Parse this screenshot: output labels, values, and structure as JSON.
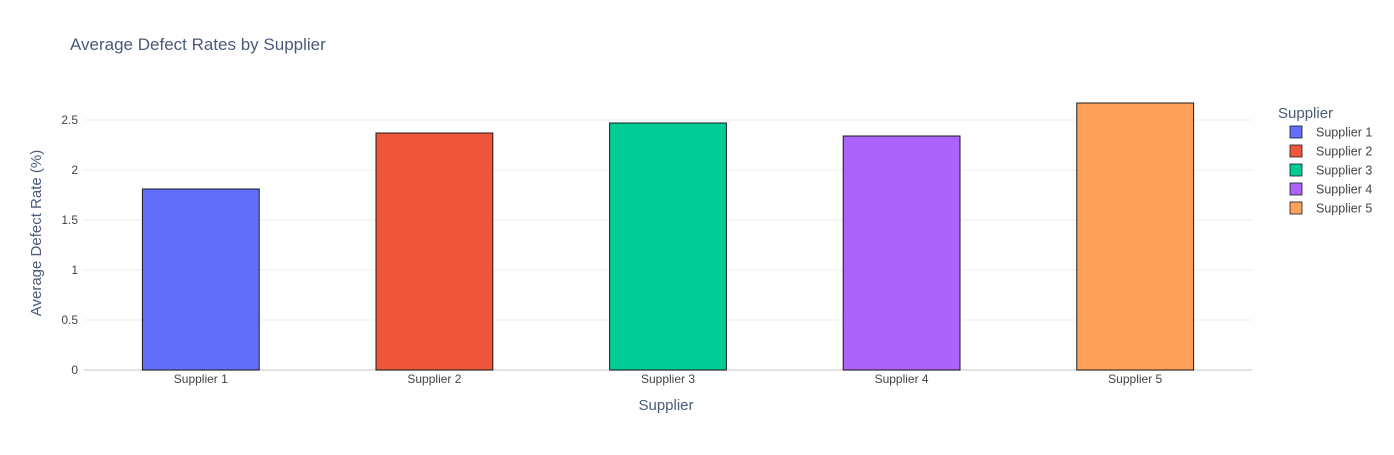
{
  "chart_data": {
    "type": "bar",
    "title": "Average Defect Rates by Supplier",
    "xlabel": "Supplier",
    "ylabel": "Average Defect Rate (%)",
    "categories": [
      "Supplier 1",
      "Supplier 2",
      "Supplier 3",
      "Supplier 4",
      "Supplier 5"
    ],
    "values": [
      1.81,
      2.37,
      2.47,
      2.34,
      2.67
    ],
    "colors": [
      "#636efa",
      "#ef553b",
      "#00cc96",
      "#ab63fa",
      "#ffa15a"
    ],
    "ylim": [
      0,
      2.8
    ],
    "yticks": [
      0,
      0.5,
      1,
      1.5,
      2,
      2.5
    ],
    "ytick_labels": [
      "0",
      "0.5",
      "1",
      "1.5",
      "2",
      "2.5"
    ],
    "grid": true,
    "legend": {
      "title": "Supplier",
      "position": "right",
      "entries": [
        "Supplier 1",
        "Supplier 2",
        "Supplier 3",
        "Supplier 4",
        "Supplier 5"
      ]
    }
  }
}
